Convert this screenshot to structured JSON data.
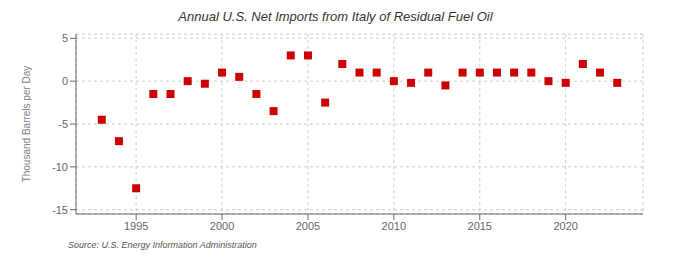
{
  "chart_data": {
    "type": "scatter",
    "title": "Annual U.S. Net Imports from Italy of Residual Fuel Oil",
    "ylabel": "Thousand Barrels per Day",
    "annotations": [
      "Source: U.S. Energy Information Administration"
    ],
    "x": [
      1993,
      1994,
      1995,
      1996,
      1997,
      1998,
      1999,
      2000,
      2001,
      2002,
      2003,
      2004,
      2005,
      2006,
      2007,
      2008,
      2009,
      2010,
      2011,
      2012,
      2013,
      2014,
      2015,
      2016,
      2017,
      2018,
      2019,
      2020,
      2021,
      2022,
      2023
    ],
    "values": [
      -4.5,
      -7.0,
      -12.5,
      -1.5,
      -1.5,
      0.0,
      -0.3,
      1.0,
      0.5,
      -1.5,
      -3.5,
      3.0,
      3.0,
      -2.5,
      2.0,
      1.0,
      1.0,
      0.0,
      -0.2,
      1.0,
      -0.5,
      1.0,
      1.0,
      1.0,
      1.0,
      1.0,
      0.0,
      -0.2,
      2.0,
      1.0,
      -0.2
    ],
    "color": "#cc0000",
    "marker": "square",
    "xlim": [
      1991.5,
      2024.5
    ],
    "xticks": [
      1995,
      2000,
      2005,
      2010,
      2015,
      2020
    ],
    "ylim": [
      -15.5,
      5.5
    ],
    "yticks": [
      -15,
      -10,
      -5,
      0,
      5
    ],
    "grid": true
  }
}
